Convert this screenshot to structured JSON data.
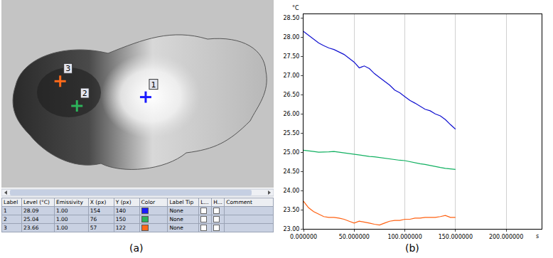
{
  "panel_labels": [
    "(a)",
    "(b)"
  ],
  "thermal_image": {
    "table": {
      "columns": [
        "Label",
        "Level (°C)",
        "Emissivity",
        "X (px)",
        "Y (px)",
        "Color",
        "Label Tip",
        "L...",
        "H...",
        "Comment"
      ],
      "rows": [
        [
          1,
          28.09,
          "1.00",
          154,
          140,
          "#1a1aff",
          "None",
          false,
          false,
          null
        ],
        [
          2,
          25.04,
          "1.00",
          76,
          150,
          "#2db35a",
          "None",
          false,
          false,
          null
        ],
        [
          3,
          23.66,
          "1.00",
          57,
          122,
          "#ff6a1a",
          "None",
          false,
          false,
          null
        ]
      ]
    }
  },
  "chart_data": {
    "type": "line",
    "x_label": "s",
    "y_label": "°C",
    "x": [
      0,
      5,
      10,
      15,
      20,
      25,
      30,
      35,
      40,
      45,
      50,
      55,
      60,
      65,
      70,
      75,
      80,
      85,
      90,
      95,
      100,
      105,
      110,
      115,
      120,
      125,
      130,
      135,
      140,
      145,
      150
    ],
    "series": [
      {
        "color": "#1010d0",
        "values": [
          28.15,
          28.05,
          27.95,
          27.85,
          27.78,
          27.72,
          27.68,
          27.62,
          27.55,
          27.45,
          27.35,
          27.2,
          27.25,
          27.18,
          27.05,
          26.95,
          26.85,
          26.75,
          26.62,
          26.55,
          26.45,
          26.35,
          26.28,
          26.2,
          26.12,
          26.08,
          26.0,
          25.95,
          25.85,
          25.72,
          25.6
        ]
      },
      {
        "color": "#10b060",
        "values": [
          25.05,
          25.04,
          25.02,
          25.0,
          25.0,
          25.01,
          25.02,
          25.0,
          24.98,
          24.96,
          24.95,
          24.93,
          24.9,
          24.89,
          24.88,
          24.86,
          24.85,
          24.82,
          24.8,
          24.79,
          24.78,
          24.75,
          24.72,
          24.7,
          24.68,
          24.65,
          24.62,
          24.6,
          24.58,
          24.56,
          24.55
        ]
      },
      {
        "color": "#ff6010",
        "values": [
          23.72,
          23.55,
          23.45,
          23.38,
          23.32,
          23.3,
          23.3,
          23.28,
          23.25,
          23.2,
          23.15,
          23.2,
          23.18,
          23.15,
          23.12,
          23.1,
          23.15,
          23.2,
          23.22,
          23.22,
          23.25,
          23.25,
          23.28,
          23.28,
          23.3,
          23.3,
          23.3,
          23.32,
          23.35,
          23.3,
          23.3
        ]
      }
    ],
    "xlim": [
      0,
      235
    ],
    "xticks": [
      {
        "value": 0,
        "label": "0.000000"
      },
      {
        "value": 50,
        "label": "50.000000"
      },
      {
        "value": 100,
        "label": "100.000000"
      },
      {
        "value": 150,
        "label": "150.000000"
      },
      {
        "value": 200,
        "label": "200.000000"
      }
    ],
    "ylim": [
      23.0,
      28.6
    ],
    "yticks": [
      {
        "value": 23,
        "label": "23.00"
      },
      {
        "value": 23.5,
        "label": "23.50"
      },
      {
        "value": 24,
        "label": "24.00"
      },
      {
        "value": 24.5,
        "label": "24.50"
      },
      {
        "value": 25,
        "label": "25.00"
      },
      {
        "value": 25.5,
        "label": "25.50"
      },
      {
        "value": 26,
        "label": "26.00"
      },
      {
        "value": 26.5,
        "label": "26.50"
      },
      {
        "value": 27,
        "label": "27.00"
      },
      {
        "value": 27.5,
        "label": "27.50"
      },
      {
        "value": 28,
        "label": "28.00"
      },
      {
        "value": 28.5,
        "label": "28.50"
      }
    ],
    "grid": "x"
  }
}
